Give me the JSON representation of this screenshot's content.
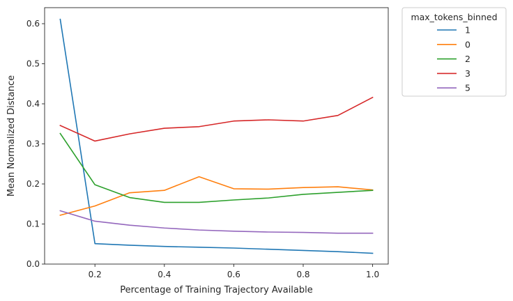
{
  "chart_data": {
    "type": "line",
    "title": "",
    "xlabel": "Percentage of Training Trajectory Available",
    "ylabel": "Mean Normalized Distance",
    "xlim": [
      0.055,
      1.045
    ],
    "ylim": [
      0.0,
      0.64
    ],
    "xticks": [
      0.2,
      0.4,
      0.6,
      0.8,
      1.0
    ],
    "xtick_labels": [
      "0.2",
      "0.4",
      "0.6",
      "0.8",
      "1.0"
    ],
    "yticks": [
      0.0,
      0.1,
      0.2,
      0.3,
      0.4,
      0.5,
      0.6
    ],
    "ytick_labels": [
      "0.0",
      "0.1",
      "0.2",
      "0.3",
      "0.4",
      "0.5",
      "0.6"
    ],
    "grid": false,
    "legend": {
      "title": "max_tokens_binned",
      "placement": "outside-top-right"
    },
    "x": [
      0.1,
      0.2,
      0.3,
      0.4,
      0.5,
      0.6,
      0.7,
      0.8,
      0.9,
      1.0
    ],
    "series": [
      {
        "name": "1",
        "color": "#1f77b4",
        "values": [
          0.611,
          0.051,
          0.047,
          0.044,
          0.042,
          0.04,
          0.037,
          0.034,
          0.031,
          0.027
        ]
      },
      {
        "name": "0",
        "color": "#ff7f0e",
        "values": [
          0.122,
          0.145,
          0.178,
          0.184,
          0.218,
          0.188,
          0.187,
          0.191,
          0.193,
          0.185
        ]
      },
      {
        "name": "2",
        "color": "#2ca02c",
        "values": [
          0.326,
          0.198,
          0.166,
          0.154,
          0.154,
          0.16,
          0.165,
          0.174,
          0.179,
          0.184
        ]
      },
      {
        "name": "3",
        "color": "#d62728",
        "values": [
          0.346,
          0.307,
          0.325,
          0.339,
          0.343,
          0.357,
          0.36,
          0.357,
          0.371,
          0.416
        ]
      },
      {
        "name": "5",
        "color": "#9467bd",
        "values": [
          0.133,
          0.107,
          0.097,
          0.09,
          0.085,
          0.082,
          0.08,
          0.079,
          0.077,
          0.077
        ]
      }
    ]
  }
}
